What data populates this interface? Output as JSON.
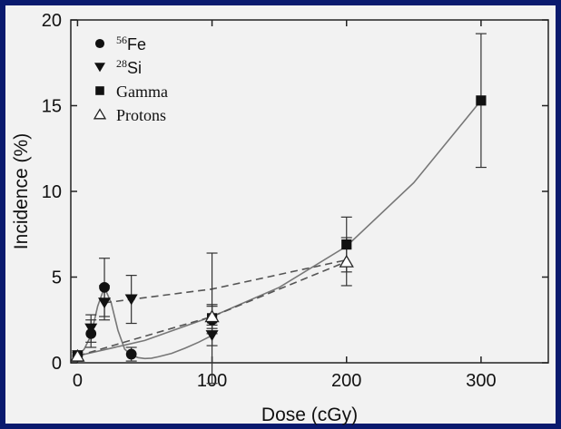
{
  "chart_data": {
    "type": "scatter",
    "title": "",
    "xlabel": "Dose (cGy)",
    "ylabel": "Incidence (%)",
    "xlim": [
      -5,
      350
    ],
    "ylim": [
      0,
      20
    ],
    "xticks": [
      0,
      100,
      200,
      300
    ],
    "yticks": [
      0,
      5,
      10,
      15,
      20
    ],
    "grid": false,
    "legend_position": "top-left",
    "legend": [
      {
        "marker": "circle",
        "mass": "56",
        "symbol": "Fe"
      },
      {
        "marker": "triangle-down",
        "mass": "28",
        "symbol": "Si"
      },
      {
        "marker": "square",
        "label": "Gamma"
      },
      {
        "marker": "triangle-up-open",
        "label": "Protons"
      }
    ],
    "series": [
      {
        "name": "Fe",
        "marker": "circle",
        "points": [
          {
            "x": 0,
            "y": 0.4,
            "err": 0.3
          },
          {
            "x": 10,
            "y": 1.7,
            "err": 0.8
          },
          {
            "x": 20,
            "y": 4.4,
            "err": 1.7
          },
          {
            "x": 40,
            "y": 0.5,
            "err": 0.4
          },
          {
            "x": 100,
            "y": 2.5,
            "err": 0.8
          }
        ],
        "fit": {
          "style": "solid",
          "x": [
            0,
            5,
            10,
            15,
            20,
            25,
            30,
            35,
            40,
            45,
            50,
            55,
            60,
            70,
            80,
            90,
            100
          ],
          "y": [
            0.4,
            0.8,
            1.6,
            3.3,
            4.4,
            3.5,
            1.9,
            0.8,
            0.45,
            0.3,
            0.25,
            0.27,
            0.35,
            0.55,
            0.85,
            1.2,
            1.6
          ]
        }
      },
      {
        "name": "Si",
        "marker": "triangle-down",
        "points": [
          {
            "x": 10,
            "y": 2.0,
            "err": 0.8
          },
          {
            "x": 20,
            "y": 3.5,
            "err": 1.0
          },
          {
            "x": 40,
            "y": 3.7,
            "err": 1.4
          },
          {
            "x": 100,
            "y": 1.6,
            "err": 0.6
          }
        ],
        "fit": {
          "style": "dashed",
          "x": [
            20,
            100,
            200
          ],
          "y": [
            3.5,
            4.3,
            6.0
          ]
        }
      },
      {
        "name": "Gamma",
        "marker": "square",
        "points": [
          {
            "x": 0,
            "y": 0.4,
            "err": 0.2
          },
          {
            "x": 100,
            "y": 2.6,
            "err": 3.8
          },
          {
            "x": 200,
            "y": 6.9,
            "err": 1.6
          },
          {
            "x": 300,
            "y": 15.3,
            "err": 3.9
          }
        ],
        "fit": {
          "style": "solid",
          "x": [
            0,
            50,
            100,
            150,
            200,
            250,
            300
          ],
          "y": [
            0.4,
            1.3,
            2.7,
            4.4,
            6.8,
            10.5,
            15.3
          ]
        }
      },
      {
        "name": "Protons",
        "marker": "triangle-up-open",
        "points": [
          {
            "x": 0,
            "y": 0.4,
            "err": 0.3
          },
          {
            "x": 100,
            "y": 2.7,
            "err": 0.7
          },
          {
            "x": 200,
            "y": 5.9,
            "err": 1.4
          }
        ],
        "fit": {
          "style": "dashed",
          "x": [
            0,
            100,
            200
          ],
          "y": [
            0.4,
            2.7,
            5.9
          ]
        }
      }
    ]
  }
}
